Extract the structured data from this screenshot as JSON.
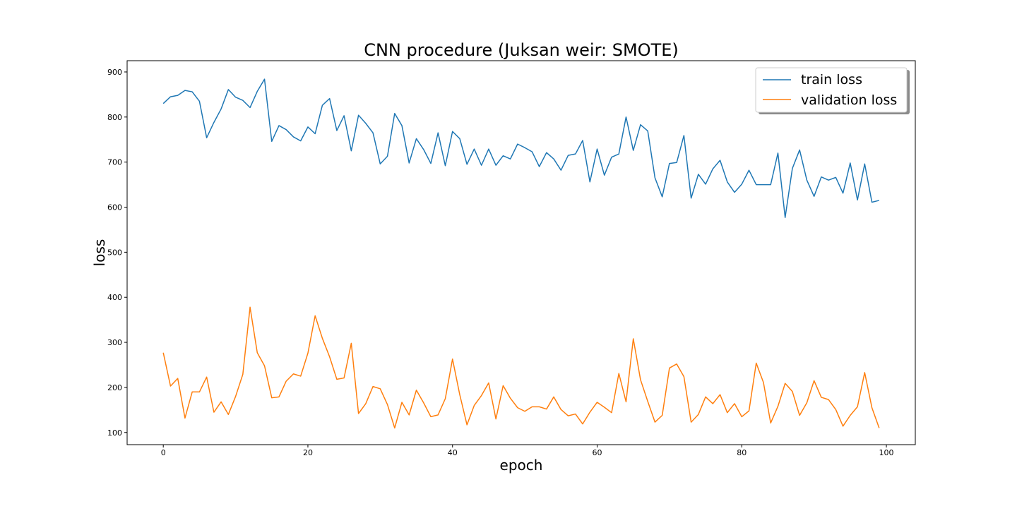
{
  "chart_data": {
    "type": "line",
    "title": "CNN procedure (Juksan weir: SMOTE)",
    "xlabel": "epoch",
    "ylabel": "loss",
    "xlim": [
      -5,
      104
    ],
    "ylim": [
      73,
      925
    ],
    "xticks": [
      0,
      20,
      40,
      60,
      80,
      100
    ],
    "yticks": [
      100,
      200,
      300,
      400,
      500,
      600,
      700,
      800,
      900
    ],
    "grid": false,
    "legend_position": "top-right",
    "series": [
      {
        "name": "train loss",
        "color": "#1f77b4",
        "values": [
          830,
          845,
          848,
          859,
          856,
          835,
          754,
          788,
          818,
          861,
          844,
          837,
          821,
          857,
          884,
          746,
          781,
          772,
          756,
          747,
          778,
          763,
          826,
          841,
          770,
          803,
          725,
          804,
          786,
          765,
          696,
          713,
          808,
          781,
          698,
          752,
          728,
          697,
          765,
          692,
          768,
          752,
          695,
          729,
          693,
          729,
          693,
          714,
          707,
          740,
          732,
          723,
          690,
          721,
          707,
          682,
          715,
          718,
          748,
          656,
          729,
          671,
          711,
          718,
          800,
          726,
          783,
          769,
          665,
          623,
          697,
          699,
          759,
          620,
          673,
          651,
          685,
          704,
          656,
          633,
          651,
          682,
          650,
          650,
          650,
          720,
          577,
          686,
          727,
          660,
          624,
          667,
          660,
          666,
          631,
          698,
          616,
          696,
          611,
          615
        ]
      },
      {
        "name": "validation loss",
        "color": "#ff7f0e",
        "values": [
          277,
          203,
          220,
          132,
          190,
          190,
          223,
          145,
          168,
          140,
          180,
          229,
          378,
          277,
          248,
          177,
          179,
          214,
          230,
          225,
          276,
          359,
          309,
          268,
          218,
          221,
          298,
          142,
          164,
          202,
          197,
          162,
          110,
          167,
          139,
          194,
          166,
          135,
          139,
          175,
          263,
          184,
          117,
          160,
          182,
          210,
          130,
          204,
          176,
          155,
          147,
          157,
          157,
          152,
          179,
          151,
          137,
          141,
          119,
          145,
          167,
          156,
          144,
          231,
          168,
          308,
          217,
          169,
          123,
          138,
          243,
          252,
          224,
          123,
          140,
          179,
          164,
          184,
          144,
          164,
          135,
          148,
          254,
          211,
          121,
          158,
          209,
          191,
          138,
          166,
          215,
          178,
          173,
          151,
          114,
          138,
          157,
          233,
          155,
          110
        ]
      }
    ]
  }
}
